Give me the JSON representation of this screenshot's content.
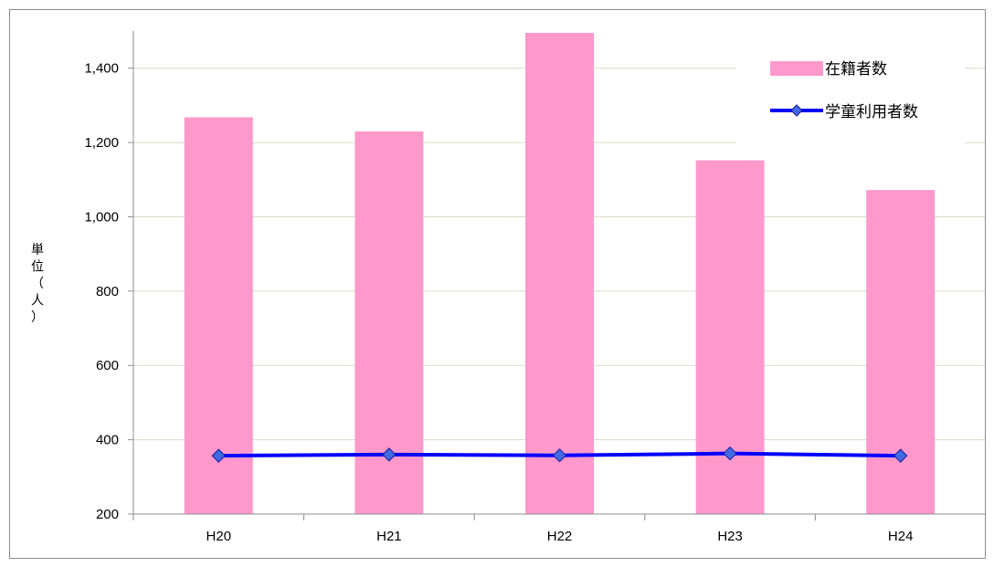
{
  "chart_data": {
    "type": "bar",
    "title": "",
    "xlabel": "",
    "ylabel": "単位（人）",
    "categories": [
      "H20",
      "H21",
      "H22",
      "H23",
      "H24"
    ],
    "series": [
      {
        "name": "在籍者数",
        "kind": "bar",
        "color": "#ff99cc",
        "values": [
          1268,
          1230,
          1495,
          1152,
          1072
        ]
      },
      {
        "name": "学童利用者数",
        "kind": "line",
        "color": "#0000ff",
        "marker_color": "#4169e1",
        "values": [
          357,
          360,
          358,
          363,
          357
        ]
      }
    ],
    "ylim": [
      200,
      1500
    ],
    "yticks": [
      200,
      400,
      600,
      800,
      1000,
      1200,
      1400
    ],
    "ytick_labels": [
      "200",
      "400",
      "600",
      "800",
      "1,000",
      "1,200",
      "1,400"
    ],
    "grid": true,
    "legend": "top-right"
  }
}
